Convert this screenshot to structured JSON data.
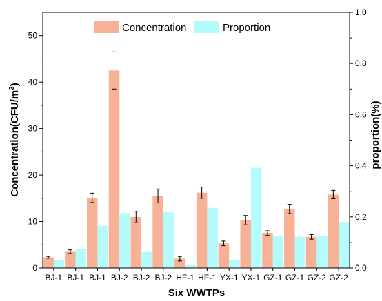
{
  "chart_data": {
    "type": "bar",
    "xlabel": "Six WWTPs",
    "ylabel_left": "Concentration(CFU/m",
    "ylabel_left_sup": "3",
    "ylabel_left_close": ")",
    "ylabel_right": "proportion(%)",
    "categories": [
      "BJ-1",
      "BJ-1",
      "BJ-1",
      "BJ-2",
      "BJ-2",
      "BJ-2",
      "HF-1",
      "HF-1",
      "YX-1",
      "YX-1",
      "GZ-1",
      "GZ-1",
      "GZ-2",
      "GZ-2"
    ],
    "ylim_left": [
      0,
      55
    ],
    "yticks_left": [
      0,
      10,
      20,
      30,
      40,
      50
    ],
    "ylim_right": [
      0,
      1.0
    ],
    "yticks_right": [
      "0.0",
      "0.2",
      "0.4",
      "0.6",
      "0.8",
      "1.0"
    ],
    "legend_position": "top-center",
    "series": [
      {
        "name": "Concentration",
        "axis": "left",
        "color": "#f7b196",
        "values": [
          2.3,
          3.5,
          15.1,
          42.5,
          11.0,
          15.5,
          2.0,
          16.2,
          5.3,
          10.3,
          7.5,
          12.7,
          6.7,
          15.8
        ],
        "errors": [
          0.2,
          0.4,
          1.0,
          4.0,
          1.2,
          1.5,
          0.5,
          1.2,
          0.5,
          1.0,
          0.5,
          1.0,
          0.5,
          0.9
        ]
      },
      {
        "name": "Proportion",
        "axis": "right",
        "color": "#b4fcfc",
        "values": [
          0.03,
          0.075,
          0.165,
          0.215,
          0.063,
          0.218,
          0.012,
          0.235,
          0.032,
          0.392,
          0.125,
          0.122,
          0.125,
          0.177
        ]
      }
    ]
  }
}
